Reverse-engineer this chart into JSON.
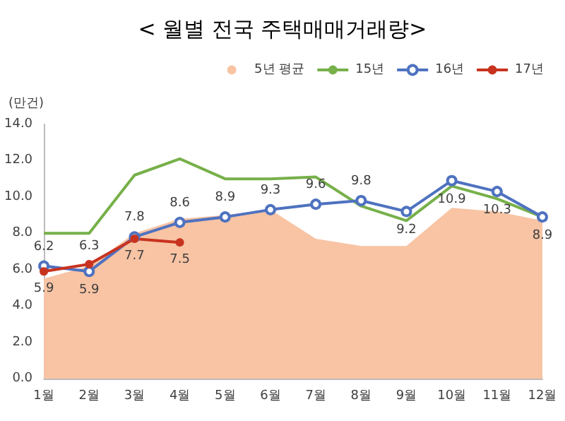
{
  "chart_data": {
    "type": "line",
    "title": "< 월별 전국 주택매매거래량>",
    "ylabel": "(만건)",
    "categories": [
      "1월",
      "2월",
      "3월",
      "4월",
      "5월",
      "6월",
      "7월",
      "8월",
      "9월",
      "10월",
      "11월",
      "12월"
    ],
    "ylim": [
      0,
      14
    ],
    "yticks": [
      {
        "value": 0,
        "label": "0.0"
      },
      {
        "value": 2,
        "label": "2.0"
      },
      {
        "value": 4,
        "label": "4.0"
      },
      {
        "value": 6,
        "label": "6.0"
      },
      {
        "value": 8,
        "label": "8.0"
      },
      {
        "value": 10,
        "label": "10.0"
      },
      {
        "value": 12,
        "label": "12.0"
      },
      {
        "value": 14,
        "label": "14.0"
      }
    ],
    "grid": false,
    "legend": "top right",
    "series": [
      {
        "name": "5년 평균",
        "type": "area",
        "color": "#f8c4a4",
        "values": [
          5.5,
          6.2,
          8.0,
          8.8,
          9.0,
          9.3,
          7.7,
          7.3,
          7.3,
          9.4,
          9.2,
          8.7
        ]
      },
      {
        "name": "15년",
        "type": "line",
        "color": "#77b04a",
        "marker": "none",
        "values": [
          8.0,
          8.0,
          11.2,
          12.1,
          11.0,
          11.0,
          11.1,
          9.5,
          8.7,
          10.6,
          9.9,
          8.9
        ]
      },
      {
        "name": "16년",
        "type": "line",
        "color": "#4f72c0",
        "marker": "circle",
        "values": [
          6.2,
          5.9,
          7.8,
          8.6,
          8.9,
          9.3,
          9.6,
          9.8,
          9.2,
          10.9,
          10.3,
          8.9
        ],
        "value_labels": [
          "6.2",
          "5.9",
          "7.8",
          "8.6",
          "8.9",
          "9.3",
          "9.6",
          "9.8",
          "9.2",
          "10.9",
          "10.3",
          "8.9"
        ]
      },
      {
        "name": "17년",
        "type": "line",
        "color": "#c8331f",
        "marker": "circle",
        "values": [
          5.9,
          6.3,
          7.7,
          7.5,
          null,
          null,
          null,
          null,
          null,
          null,
          null,
          null
        ],
        "value_labels": [
          "5.9",
          "6.3",
          "7.7",
          "7.5",
          null,
          null,
          null,
          null,
          null,
          null,
          null,
          null
        ]
      }
    ]
  }
}
